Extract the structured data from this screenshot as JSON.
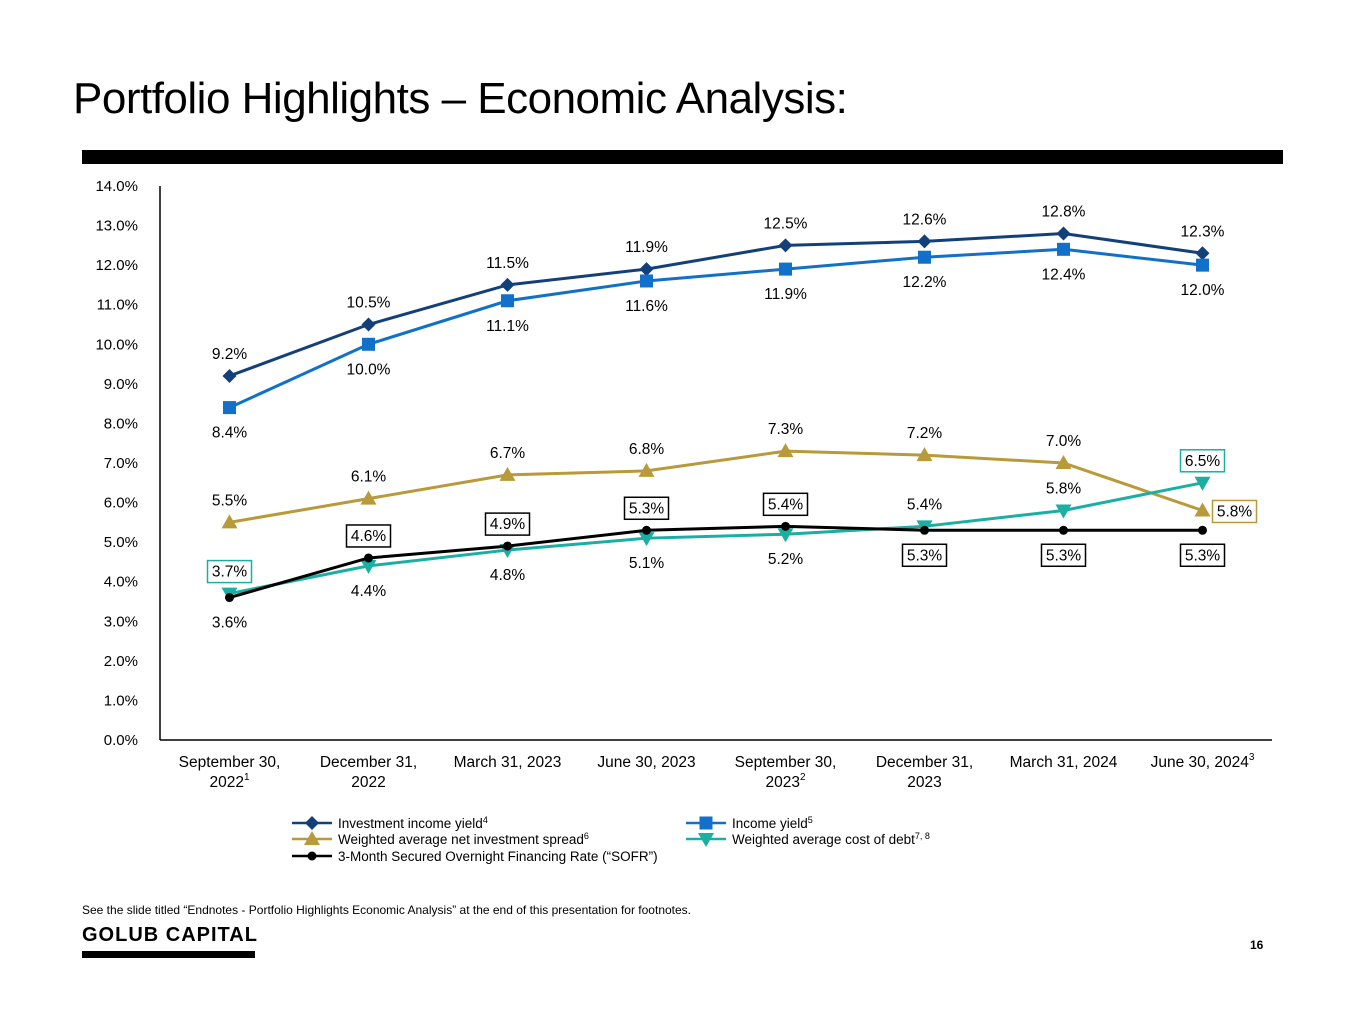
{
  "page": {
    "title": "Portfolio Highlights – Economic Analysis:",
    "footnote": "See the slide titled “Endnotes - Portfolio Highlights Economic Analysis” at the end of this presentation for footnotes.",
    "brand": "GOLUB CAPITAL",
    "page_number": "16"
  },
  "chart_data": {
    "type": "line",
    "categories": [
      {
        "line1": "September 30,",
        "line2": "2022",
        "sup": "1"
      },
      {
        "line1": "December 31,",
        "line2": "2022",
        "sup": ""
      },
      {
        "line1": "March 31, 2023",
        "line2": "",
        "sup": ""
      },
      {
        "line1": "June 30, 2023",
        "line2": "",
        "sup": ""
      },
      {
        "line1": "September 30,",
        "line2": "2023",
        "sup": "2"
      },
      {
        "line1": "December 31,",
        "line2": "2023",
        "sup": ""
      },
      {
        "line1": "March 31, 2024",
        "line2": "",
        "sup": ""
      },
      {
        "line1": "June 30, 2024",
        "line2": "",
        "sup": "3"
      }
    ],
    "ylim": [
      0,
      14
    ],
    "yticks": [
      "0.0%",
      "1.0%",
      "2.0%",
      "3.0%",
      "4.0%",
      "5.0%",
      "6.0%",
      "7.0%",
      "8.0%",
      "9.0%",
      "10.0%",
      "11.0%",
      "12.0%",
      "13.0%",
      "14.0%"
    ],
    "grid": false,
    "legend_position": "bottom",
    "series": [
      {
        "name": "Investment income yield",
        "sup": "4",
        "color": "#14407A",
        "marker": "diamond",
        "values": [
          9.2,
          10.5,
          11.5,
          11.9,
          12.5,
          12.6,
          12.8,
          12.3
        ],
        "labels": [
          "9.2%",
          "10.5%",
          "11.5%",
          "11.9%",
          "12.5%",
          "12.6%",
          "12.8%",
          "12.3%"
        ],
        "label_pos": [
          "above",
          "above",
          "above",
          "above",
          "above",
          "above",
          "above",
          "above"
        ],
        "boxed": [
          false,
          false,
          false,
          false,
          false,
          false,
          false,
          false
        ]
      },
      {
        "name": "Income yield",
        "sup": "5",
        "color": "#1170C9",
        "marker": "square",
        "values": [
          8.4,
          10.0,
          11.1,
          11.6,
          11.9,
          12.2,
          12.4,
          12.0
        ],
        "labels": [
          "8.4%",
          "10.0%",
          "11.1%",
          "11.6%",
          "11.9%",
          "12.2%",
          "12.4%",
          "12.0%"
        ],
        "label_pos": [
          "below",
          "below",
          "below",
          "below",
          "below",
          "below",
          "below",
          "below"
        ],
        "boxed": [
          false,
          false,
          false,
          false,
          false,
          false,
          false,
          false
        ]
      },
      {
        "name": "Weighted average net investment spread",
        "sup": "6",
        "color": "#B89A3A",
        "marker": "triangle-up",
        "values": [
          5.5,
          6.1,
          6.7,
          6.8,
          7.3,
          7.2,
          7.0,
          5.8
        ],
        "labels": [
          "5.5%",
          "6.1%",
          "6.7%",
          "6.8%",
          "7.3%",
          "7.2%",
          "7.0%",
          "5.8%"
        ],
        "label_pos": [
          "above",
          "above",
          "above",
          "above",
          "above",
          "above",
          "above",
          "right"
        ],
        "boxed": [
          false,
          false,
          false,
          false,
          false,
          false,
          false,
          true
        ]
      },
      {
        "name": "Weighted average cost of debt",
        "sup": "7, 8",
        "color": "#1BAEA2",
        "marker": "triangle-down",
        "values": [
          3.7,
          4.4,
          4.8,
          5.1,
          5.2,
          5.4,
          5.8,
          6.5
        ],
        "labels": [
          "3.7%",
          "4.4%",
          "4.8%",
          "5.1%",
          "5.2%",
          "5.4%",
          "5.8%",
          "6.5%"
        ],
        "label_pos": [
          "above",
          "below",
          "below",
          "below",
          "below",
          "above",
          "above",
          "above"
        ],
        "boxed": [
          true,
          false,
          false,
          false,
          false,
          false,
          false,
          true
        ]
      },
      {
        "name": "3-Month Secured Overnight Financing Rate (“SOFR”)",
        "sup": "",
        "color": "#000000",
        "marker": "circle",
        "values": [
          3.6,
          4.6,
          4.9,
          5.3,
          5.4,
          5.3,
          5.3,
          5.3
        ],
        "labels": [
          "3.6%",
          "4.6%",
          "4.9%",
          "5.3%",
          "5.4%",
          "5.3%",
          "5.3%",
          "5.3%"
        ],
        "label_pos": [
          "below",
          "above",
          "above",
          "above",
          "above",
          "below",
          "below",
          "below"
        ],
        "boxed": [
          false,
          true,
          true,
          true,
          true,
          true,
          true,
          true
        ]
      }
    ]
  }
}
